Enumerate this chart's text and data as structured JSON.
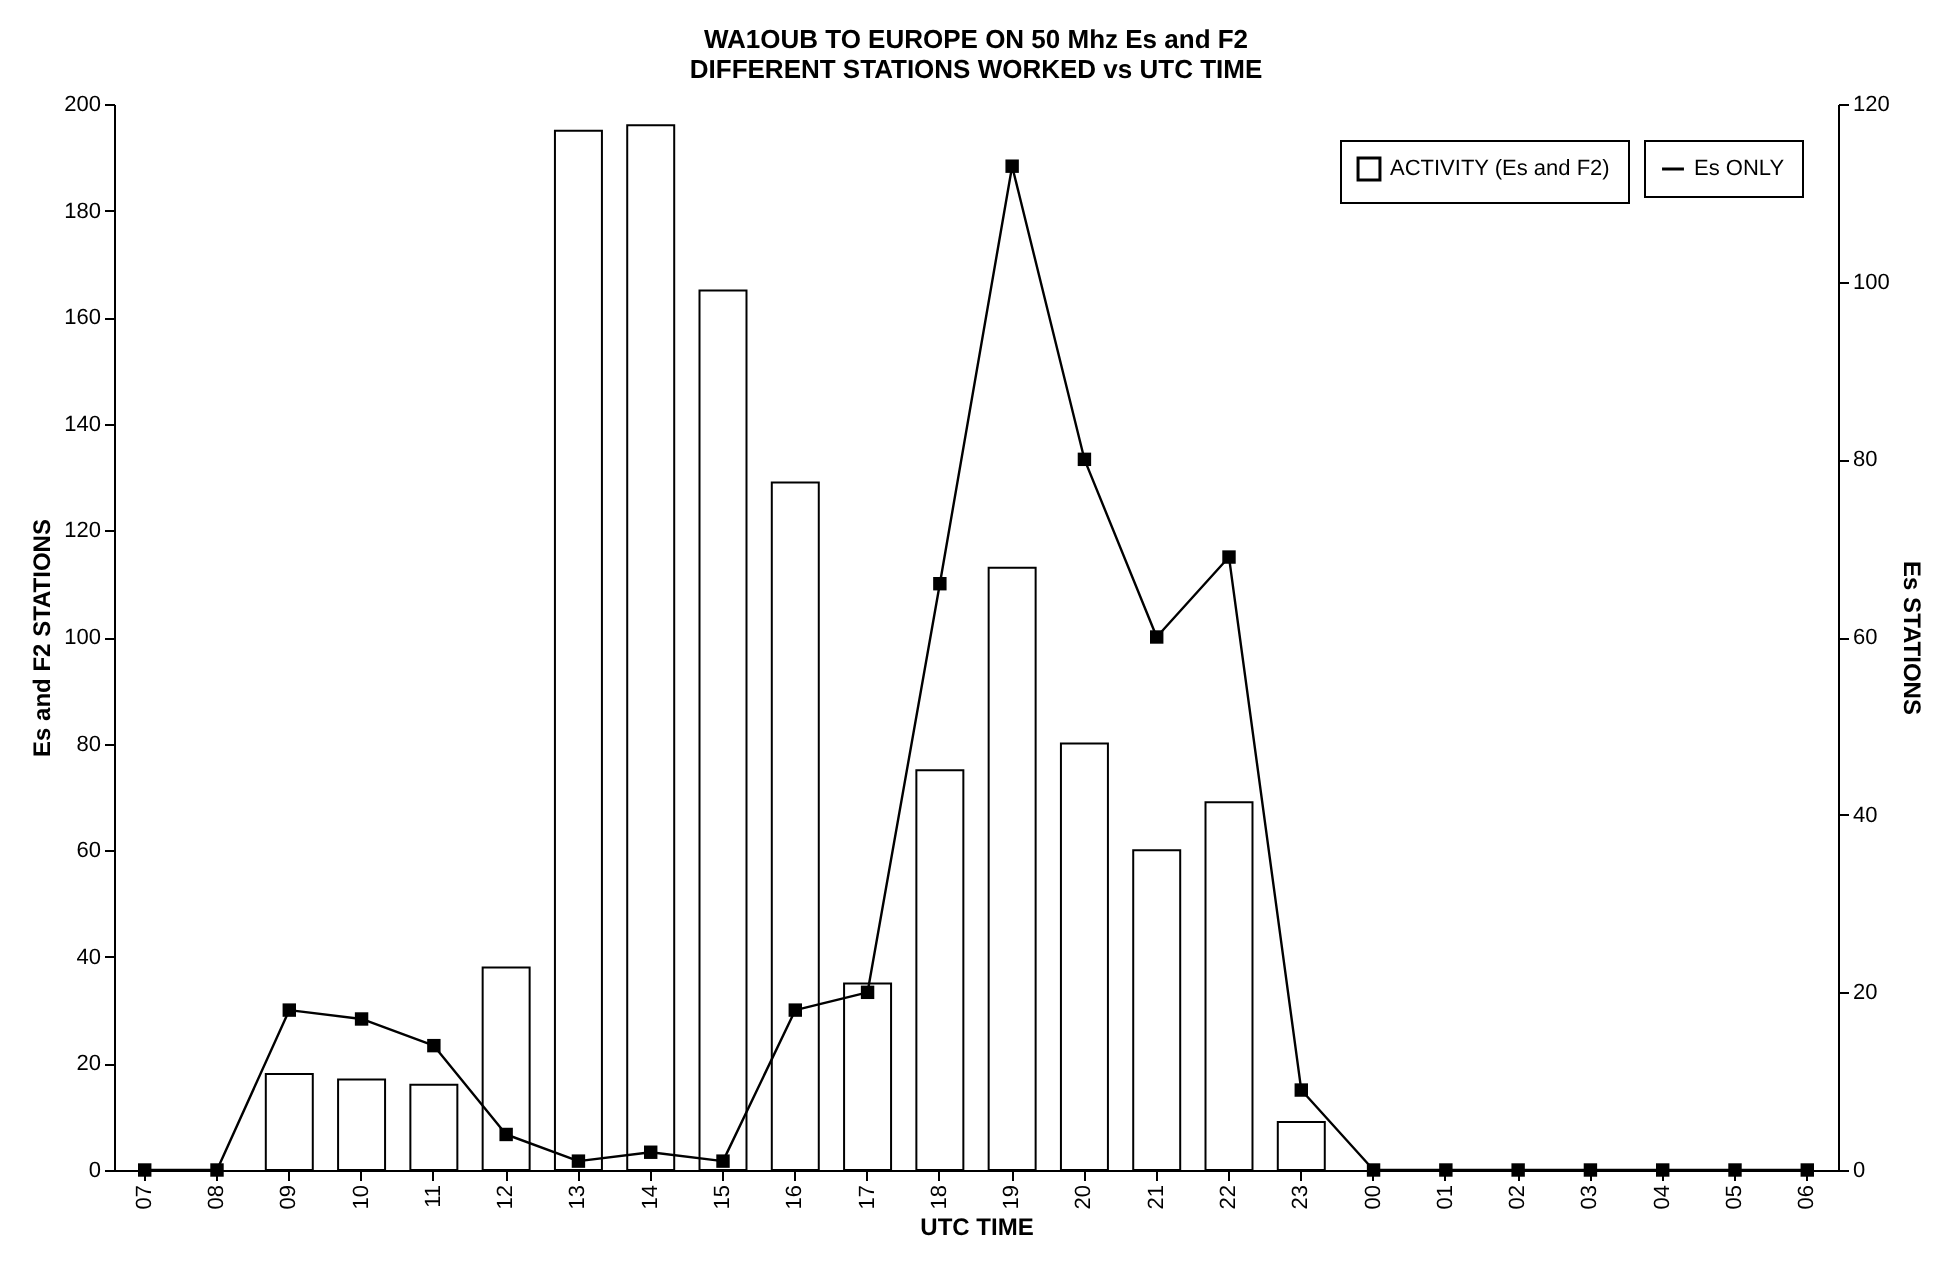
{
  "chart_data": {
    "type": "bar",
    "title": [
      "WA1OUB TO EUROPE ON 50 Mhz Es and F2",
      "DIFFERENT STATIONS WORKED vs UTC TIME"
    ],
    "xlabel": "UTC TIME",
    "ylabel": "Es and F2 STATIONS",
    "y2label": "Es STATIONS",
    "categories": [
      "07",
      "08",
      "09",
      "10",
      "11",
      "12",
      "13",
      "14",
      "15",
      "16",
      "17",
      "18",
      "19",
      "20",
      "21",
      "22",
      "23",
      "00",
      "01",
      "02",
      "03",
      "04",
      "05",
      "06"
    ],
    "series": [
      {
        "name": "ACTIVITY (Es and F2)",
        "color": "#ffffff",
        "values": [
          0,
          0,
          18,
          17,
          16,
          38,
          195,
          196,
          165,
          129,
          35,
          75,
          113,
          80,
          60,
          69,
          9,
          0,
          0,
          0,
          0,
          0,
          0,
          0
        ]
      },
      {
        "name": "Es ONLY",
        "type": "line",
        "axis": "y2",
        "color": "#000000",
        "marker": "square",
        "values": [
          0,
          0,
          18,
          17,
          14,
          4,
          1,
          2,
          1,
          18,
          20,
          66,
          113,
          80,
          60,
          69,
          9,
          0,
          0,
          0,
          0,
          0,
          0,
          0
        ]
      }
    ],
    "ylim": [
      0,
      200
    ],
    "yticks": [
      0,
      20,
      40,
      60,
      80,
      100,
      120,
      140,
      160,
      180,
      200
    ],
    "y2lim": [
      0,
      120
    ],
    "y2ticks": [
      0,
      20,
      40,
      60,
      80,
      100,
      120
    ],
    "grid": false,
    "legend": "top right"
  }
}
